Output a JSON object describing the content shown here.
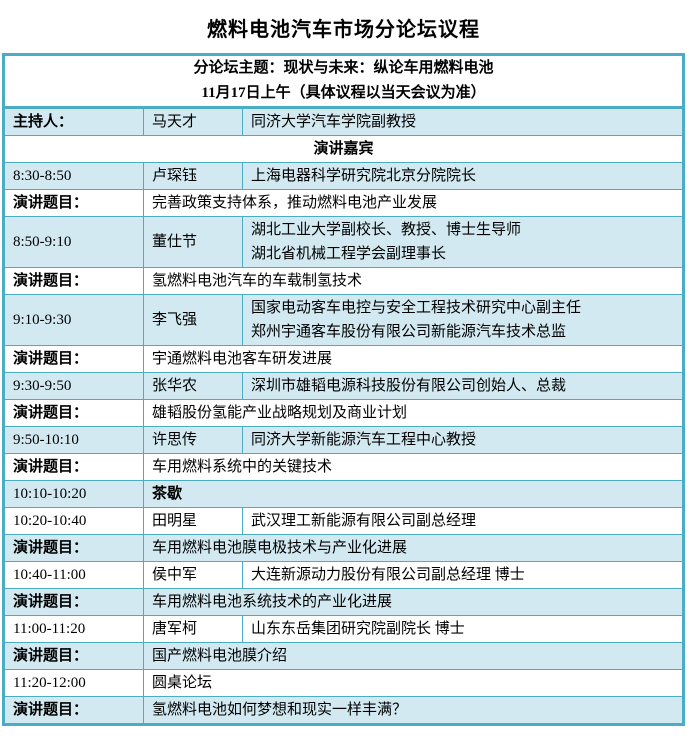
{
  "page_title": "燃料电池汽车市场分论坛议程",
  "colors": {
    "border": "#4bacc6",
    "row_fill": "#d2e9f1",
    "background": "#ffffff",
    "text": "#000000"
  },
  "table": {
    "rows": [
      {
        "type": "header",
        "shade": false,
        "lines": [
          "分论坛主题：现状与未来：纵论车用燃料电池",
          "11月17日上午（具体议程以当天会议为准）"
        ]
      },
      {
        "type": "host",
        "shade": true,
        "label": "主持人：",
        "name": "马天才",
        "affiliation": [
          "同济大学汽车学院副教授"
        ]
      },
      {
        "type": "section",
        "shade": false,
        "label": "演讲嘉宾"
      },
      {
        "type": "talk",
        "shade": true,
        "time": "8:30-8:50",
        "name": "卢琛钰",
        "affiliation": [
          "上海电器科学研究院北京分院院长"
        ]
      },
      {
        "type": "topic",
        "shade": false,
        "label": "演讲题目：",
        "text": "完善政策支持体系，推动燃料电池产业发展"
      },
      {
        "type": "talk",
        "shade": true,
        "time": "8:50-9:10",
        "name": "董仕节",
        "affiliation": [
          "湖北工业大学副校长、教授、博士生导师",
          "湖北省机械工程学会副理事长"
        ]
      },
      {
        "type": "topic",
        "shade": false,
        "label": "演讲题目：",
        "text": "氢燃料电池汽车的车载制氢技术"
      },
      {
        "type": "talk",
        "shade": true,
        "time": "9:10-9:30",
        "name": "李飞强",
        "affiliation": [
          "国家电动客车电控与安全工程技术研究中心副主任",
          "郑州宇通客车股份有限公司新能源汽车技术总监"
        ]
      },
      {
        "type": "topic",
        "shade": false,
        "label": "演讲题目：",
        "text": "宇通燃料电池客车研发进展"
      },
      {
        "type": "talk",
        "shade": true,
        "time": "9:30-9:50",
        "name": "张华农",
        "affiliation": [
          "深圳市雄韬电源科技股份有限公司创始人、总裁"
        ]
      },
      {
        "type": "topic",
        "shade": false,
        "label": "演讲题目：",
        "text": "雄韬股份氢能产业战略规划及商业计划"
      },
      {
        "type": "talk",
        "shade": true,
        "time": "9:50-10:10",
        "name": "许思传",
        "affiliation": [
          "同济大学新能源汽车工程中心教授"
        ]
      },
      {
        "type": "topic",
        "shade": false,
        "label": "演讲题目：",
        "text": "车用燃料系统中的关键技术"
      },
      {
        "type": "break",
        "shade": true,
        "time": "10:10-10:20",
        "label": "茶歇"
      },
      {
        "type": "talk",
        "shade": false,
        "time": "10:20-10:40",
        "name": "田明星",
        "affiliation": [
          "武汉理工新能源有限公司副总经理"
        ]
      },
      {
        "type": "topic",
        "shade": true,
        "label": "演讲题目：",
        "text": "车用燃料电池膜电极技术与产业化进展"
      },
      {
        "type": "talk",
        "shade": false,
        "time": "10:40-11:00",
        "name": "侯中军",
        "affiliation": [
          "大连新源动力股份有限公司副总经理 博士"
        ]
      },
      {
        "type": "topic",
        "shade": true,
        "label": "演讲题目：",
        "text": "车用燃料电池系统技术的产业化进展"
      },
      {
        "type": "talk",
        "shade": false,
        "time": "11:00-11:20",
        "name": "唐军柯",
        "affiliation": [
          "山东东岳集团研究院副院长 博士"
        ]
      },
      {
        "type": "topic",
        "shade": true,
        "label": "演讲题目：",
        "text": "国产燃料电池膜介绍"
      },
      {
        "type": "roundtable",
        "shade": false,
        "time": "11:20-12:00",
        "label": "圆桌论坛"
      },
      {
        "type": "topic",
        "shade": true,
        "label": "演讲题目：",
        "text": "氢燃料电池如何梦想和现实一样丰满？"
      }
    ]
  }
}
